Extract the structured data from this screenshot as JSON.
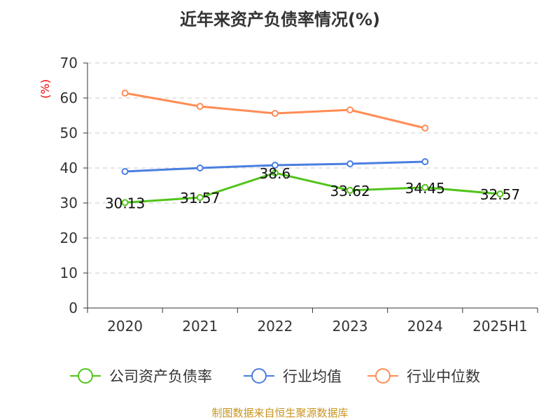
{
  "chart_data": {
    "type": "line",
    "title": "近年来资产负债率情况(%)",
    "ylabel": "(%)",
    "categories": [
      "2020",
      "2021",
      "2022",
      "2023",
      "2024",
      "2025H1"
    ],
    "ylim": [
      0,
      70
    ],
    "yticks": [
      0,
      10,
      20,
      30,
      40,
      50,
      60,
      70
    ],
    "grid": true,
    "legend_position": "bottom",
    "series": [
      {
        "name": "公司资产负债率",
        "color": "#52c41a",
        "values": [
          30.13,
          31.57,
          38.6,
          33.62,
          34.45,
          32.57
        ],
        "labels": [
          "30.13",
          "31.57",
          "38.6",
          "33.62",
          "34.45",
          "32.57"
        ]
      },
      {
        "name": "行业均值",
        "color": "#4a7fe0",
        "values": [
          39.0,
          40.0,
          40.8,
          41.2,
          41.8,
          null
        ]
      },
      {
        "name": "行业中位数",
        "color": "#ff8c55",
        "values": [
          61.4,
          57.6,
          55.6,
          56.6,
          51.4,
          null
        ]
      }
    ]
  },
  "footer": "制图数据来自恒生聚源数据库"
}
